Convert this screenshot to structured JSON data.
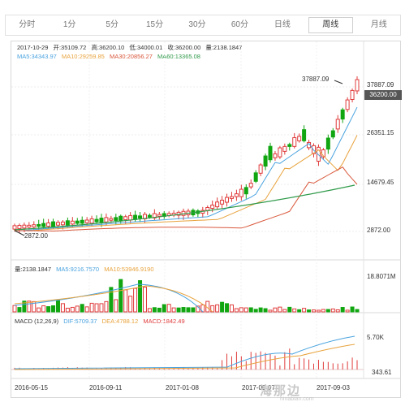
{
  "tabs": [
    {
      "label": "分时",
      "active": false
    },
    {
      "label": "1分",
      "active": false
    },
    {
      "label": "5分",
      "active": false
    },
    {
      "label": "15分",
      "active": false
    },
    {
      "label": "30分",
      "active": false
    },
    {
      "label": "60分",
      "active": false
    },
    {
      "label": "日线",
      "active": false
    },
    {
      "label": "周线",
      "active": true
    },
    {
      "label": "月线",
      "active": false
    }
  ],
  "price_info": {
    "date": "2017-10-29",
    "open": "开:35109.72",
    "high": "高:36200.10",
    "low": "低:34000.01",
    "close": "收:36200.00",
    "volume": "量:2138.1847"
  },
  "ma_info": {
    "ma5": "MA5:34343.97",
    "ma10": "MA10:29259.85",
    "ma30": "MA30:20856.27",
    "ma60": "MA60:13365.08"
  },
  "price_axis": [
    "37887.09",
    "26351.15",
    "14679.45",
    "2872.00"
  ],
  "current_price": "36200.00",
  "high_marker": "37887.09",
  "low_marker": "2872.00",
  "volume_info": {
    "volume": "量:2138.1847",
    "ma5": "MA5:9216.7570",
    "ma10": "MA10:53946.9190"
  },
  "volume_axis": "18.8071M",
  "macd_info": {
    "title": "MACD (12,26,9)",
    "dif": "DIF:5709.37",
    "dea": "DEA:4788.12",
    "macd": "MACD:1842.49"
  },
  "macd_axis": [
    "5.70K",
    "343.61"
  ],
  "date_axis": [
    "2016-05-15",
    "2016-09-11",
    "2017-01-08",
    "2017-05-07",
    "2017-09-03"
  ],
  "watermark": "海那边",
  "watermark_sub": "hinabian.com",
  "colors": {
    "up": "#e03b3b",
    "down": "#11a611",
    "ma5": "#4aa3df",
    "ma10": "#e8a33d",
    "ma30": "#d9573b",
    "ma60": "#2f9a4a"
  }
}
